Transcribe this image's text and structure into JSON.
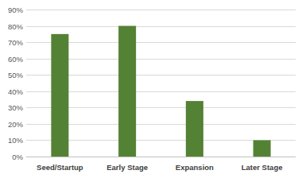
{
  "chart_data": {
    "type": "bar",
    "categories": [
      "Seed/Startup",
      "Early Stage",
      "Expansion",
      "Later Stage"
    ],
    "values": [
      75,
      80,
      34,
      10
    ],
    "color": "#548235",
    "ylim": [
      0,
      90
    ],
    "yticks": [
      {
        "value": 0,
        "label": "0%"
      },
      {
        "value": 10,
        "label": "10%"
      },
      {
        "value": 20,
        "label": "20%"
      },
      {
        "value": 30,
        "label": "30%"
      },
      {
        "value": 40,
        "label": "40%"
      },
      {
        "value": 50,
        "label": "50%"
      },
      {
        "value": 60,
        "label": "60%"
      },
      {
        "value": 70,
        "label": "70%"
      },
      {
        "value": 80,
        "label": "80%"
      },
      {
        "value": 90,
        "label": "90%"
      }
    ],
    "grid": true
  }
}
